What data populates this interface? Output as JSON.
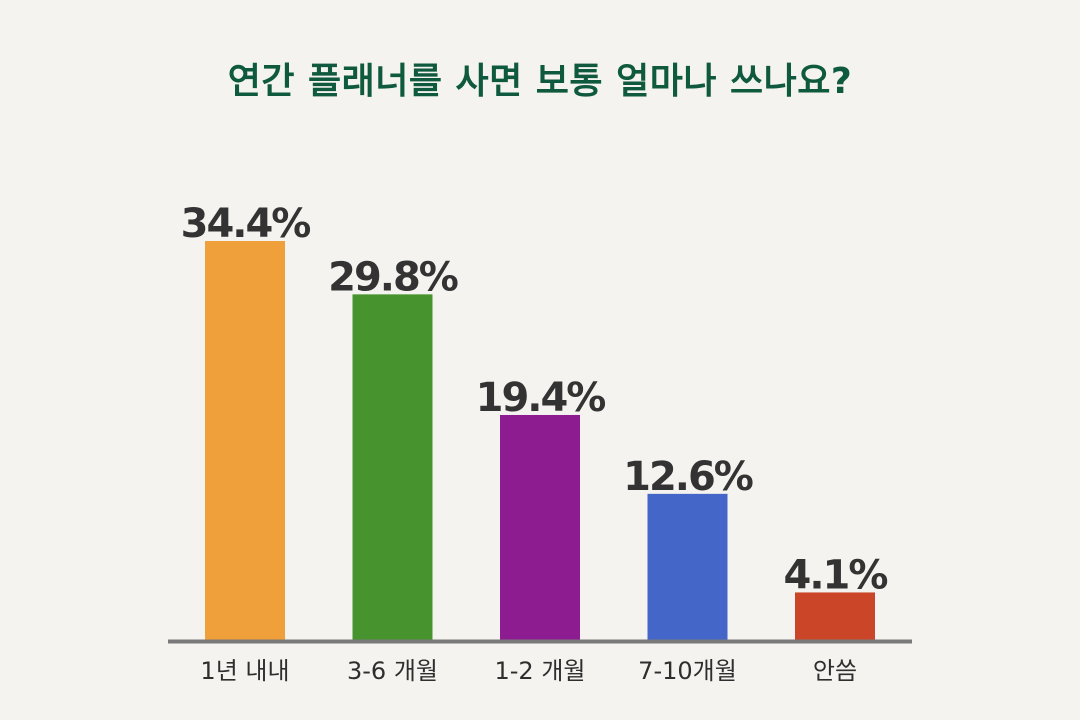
{
  "title": "연간 플래너를 사면 보통 얼마나 쓰나요?",
  "chart_data": {
    "type": "bar",
    "title": "연간 플래너를 사면 보통 얼마나 쓰나요?",
    "categories": [
      "1년 내내",
      "3-6 개월",
      "1-2 개월",
      "7-10개월",
      "안씀"
    ],
    "values": [
      34.4,
      29.8,
      19.4,
      12.6,
      4.1
    ],
    "value_labels": [
      "34.4%",
      "29.8%",
      "19.4%",
      "12.6%",
      "4.1%"
    ],
    "colors": [
      "#f0a03a",
      "#47942f",
      "#8c1c90",
      "#4366c8",
      "#cb4528"
    ],
    "axis_color": "#7a7a7a",
    "ylim": [
      0,
      40
    ],
    "unit": "%",
    "grid": false,
    "legend": "none"
  }
}
